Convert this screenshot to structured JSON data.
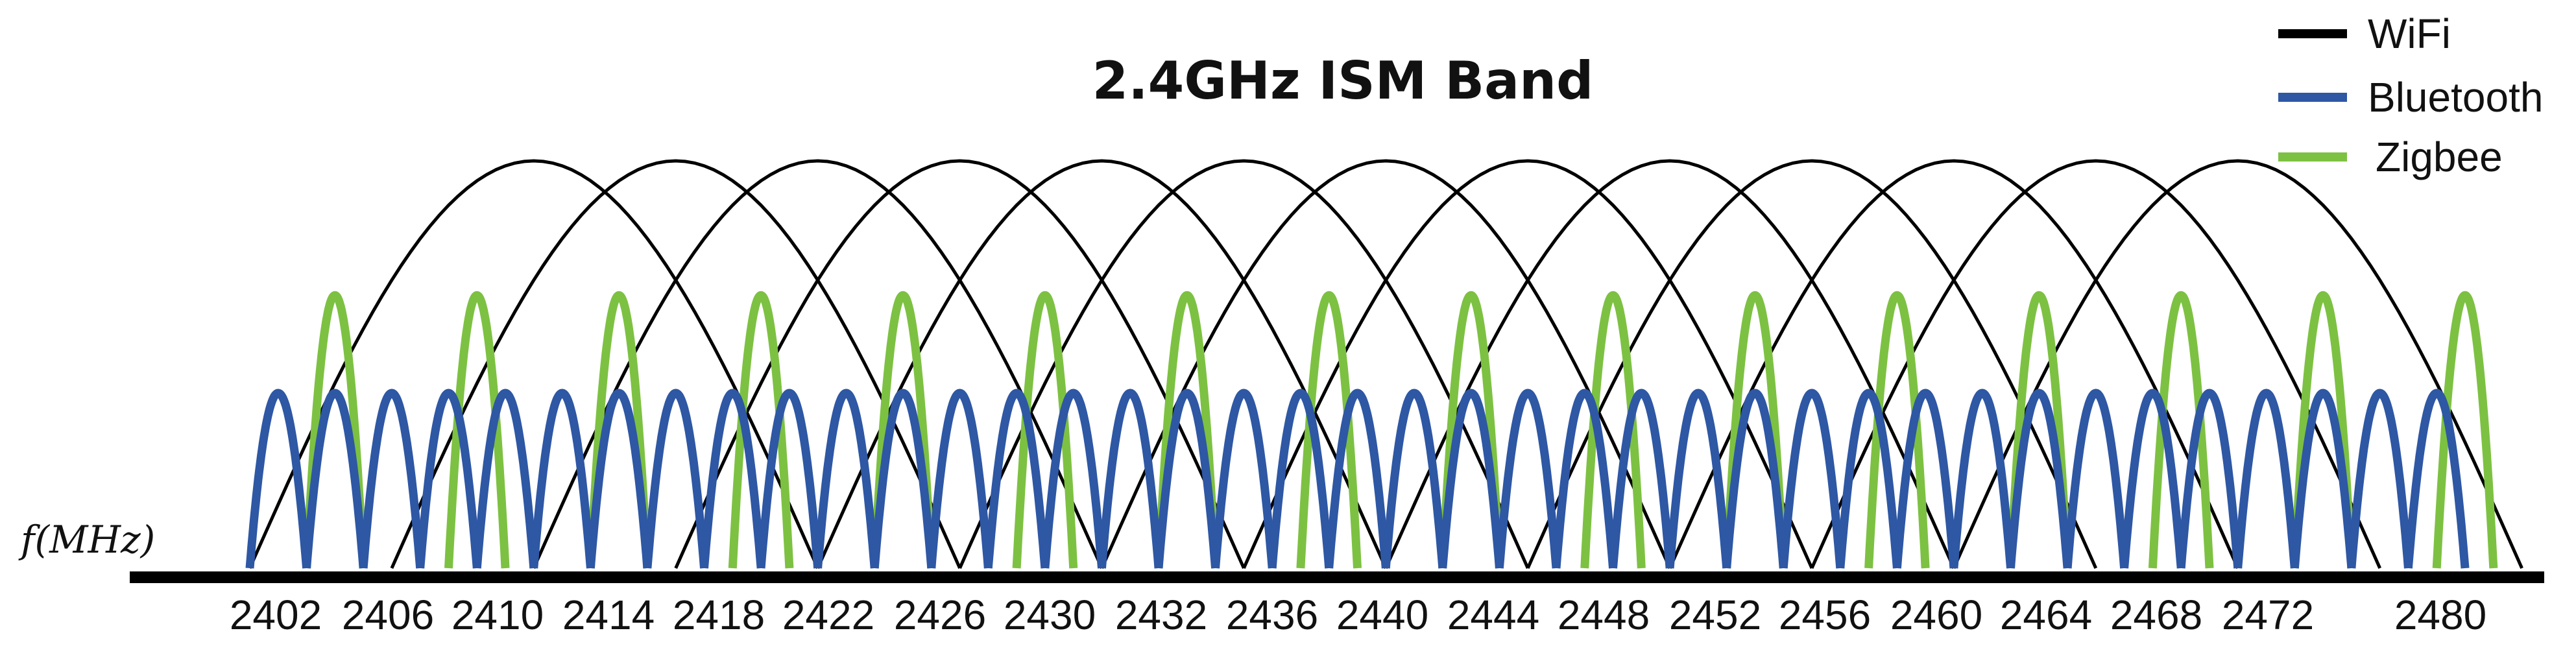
{
  "title": "2.4GHz ISM Band",
  "axis_label": "f(MHz)",
  "legend": [
    {
      "label": "WiFi",
      "color": "#000000"
    },
    {
      "label": "Bluetooth",
      "color": "#2E57A4"
    },
    {
      "label": "Zigbee",
      "color": "#7DC142"
    }
  ],
  "chart_data": {
    "type": "line",
    "title": "2.4GHz ISM Band",
    "xlabel": "f(MHz)",
    "ylabel": "",
    "xlim": [
      2402,
      2480
    ],
    "tick_labels": [
      "2402",
      "2406",
      "2410",
      "2414",
      "2418",
      "2422",
      "2426",
      "2430",
      "2432",
      "2436",
      "2440",
      "2444",
      "2448",
      "2452",
      "2456",
      "2460",
      "2464",
      "2468",
      "2472",
      "2480"
    ],
    "series": [
      {
        "name": "WiFi",
        "color": "#000000",
        "center_mhz": [
          2412,
          2417,
          2422,
          2427,
          2432,
          2437,
          2442,
          2447,
          2452,
          2457,
          2462,
          2467,
          2472
        ],
        "bandwidth_mhz": 20,
        "relative_height": 1.0
      },
      {
        "name": "Bluetooth",
        "color": "#2E57A4",
        "center_mhz": [
          2403,
          2405,
          2407,
          2409,
          2411,
          2413,
          2415,
          2417,
          2419,
          2421,
          2423,
          2425,
          2427,
          2429,
          2431,
          2433,
          2435,
          2437,
          2439,
          2441,
          2443,
          2445,
          2447,
          2449,
          2451,
          2453,
          2455,
          2457,
          2459,
          2461,
          2463,
          2465,
          2467,
          2469,
          2471,
          2473,
          2475,
          2477,
          2479
        ],
        "bandwidth_mhz": 2,
        "relative_height": 0.43
      },
      {
        "name": "Zigbee",
        "color": "#7DC142",
        "center_mhz": [
          2405,
          2410,
          2415,
          2420,
          2425,
          2430,
          2435,
          2440,
          2445,
          2450,
          2455,
          2460,
          2465,
          2470,
          2475,
          2480
        ],
        "bandwidth_mhz": 2,
        "relative_height": 0.67
      }
    ]
  }
}
